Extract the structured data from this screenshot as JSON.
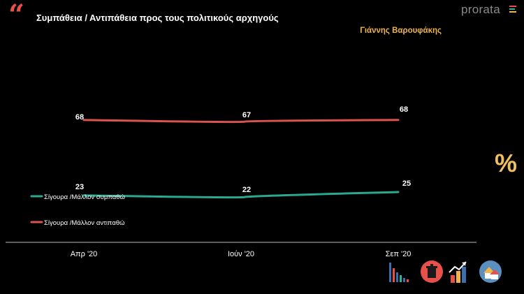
{
  "header": {
    "quote_glyph": "“",
    "title": "Συμπάθεια / Αντιπάθεια προς τους πολιτικούς αρχηγούς",
    "subtitle": "Γιάννης Βαρουφάκης",
    "brand": "prorata",
    "brand_bar_colors": [
      "#e8504a",
      "#2ab39a",
      "#f0b44a"
    ]
  },
  "side_symbol": "%",
  "colors": {
    "background": "#000000",
    "sympathy": "#2aa890",
    "antipathy": "#d9534f",
    "axis": "#bbbbbb",
    "text": "#ffffff",
    "subtitle": "#f0b44a"
  },
  "chart_data": {
    "type": "line",
    "title": "Συμπάθεια / Αντιπάθεια προς τους πολιτικούς αρχηγούς",
    "subtitle": "Γιάννης Βαρουφάκης",
    "categories": [
      "Απρ '20",
      "Ιούν '20",
      "Σεπ '20"
    ],
    "ylim": [
      0,
      100
    ],
    "grid": false,
    "legend_position": "left-bottom",
    "series": [
      {
        "name": "Σίγουρα /Μάλλον συμπαθώ",
        "color": "#2aa890",
        "values": [
          23,
          22,
          25
        ]
      },
      {
        "name": "Σίγουρα /Μάλλον αντιπαθώ",
        "color": "#d9534f",
        "values": [
          68,
          67,
          68
        ]
      }
    ]
  },
  "footer_icons": [
    "bar-chart-icon",
    "trash-bin-icon",
    "growth-chart-icon",
    "houses-icon"
  ]
}
